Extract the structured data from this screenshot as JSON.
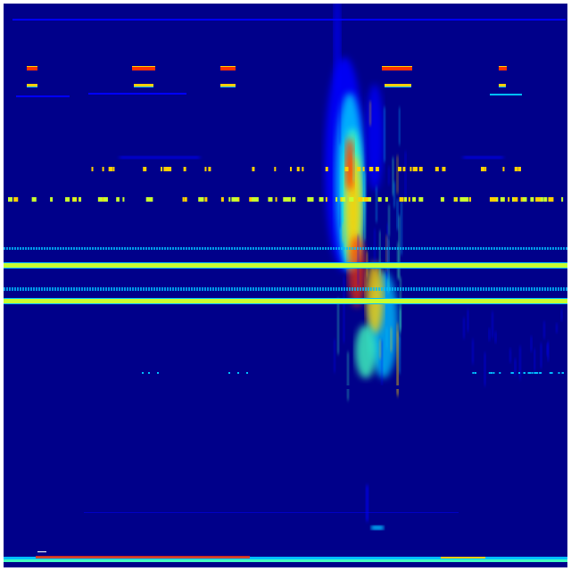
{
  "colormap": {
    "background": "#00008a",
    "low": "#0000ff",
    "mid_low": "#00bfff",
    "mid": "#40ffc0",
    "mid_high": "#c8ff30",
    "high": "#ffd000",
    "peak": "#ff3000"
  }
}
